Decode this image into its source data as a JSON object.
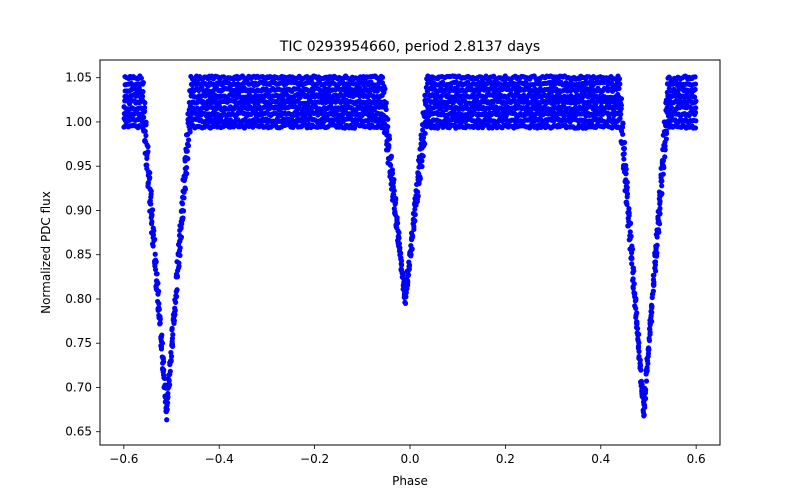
{
  "chart_data": {
    "type": "scatter",
    "title": "TIC 0293954660, period 2.8137 days",
    "xlabel": "Phase",
    "ylabel": "Normalized PDC flux",
    "xlim": [
      -0.65,
      0.65
    ],
    "ylim": [
      0.635,
      1.07
    ],
    "xticks": [
      -0.6,
      -0.4,
      -0.2,
      0.0,
      0.2,
      0.4,
      0.6
    ],
    "xtick_labels": [
      "−0.6",
      "−0.4",
      "−0.2",
      "0.0",
      "0.2",
      "0.4",
      "0.6"
    ],
    "yticks": [
      0.65,
      0.7,
      0.75,
      0.8,
      0.85,
      0.9,
      0.95,
      1.0,
      1.05
    ],
    "ytick_labels": [
      "0.65",
      "0.70",
      "0.75",
      "0.80",
      "0.85",
      "0.90",
      "0.95",
      "1.00",
      "1.05"
    ],
    "grid": false,
    "marker_color": "#0000ff",
    "series": [
      {
        "name": "PDC flux",
        "phase_range": [
          -0.6,
          0.6
        ],
        "baseline_band": [
          0.995,
          1.05
        ],
        "eclipses": [
          {
            "name": "primary",
            "center": -0.51,
            "half_width": 0.05,
            "min_flux": 0.66
          },
          {
            "name": "secondary",
            "center": -0.01,
            "half_width": 0.045,
            "min_flux": 0.79
          },
          {
            "name": "primary",
            "center": 0.49,
            "half_width": 0.05,
            "min_flux": 0.66
          }
        ]
      }
    ]
  }
}
